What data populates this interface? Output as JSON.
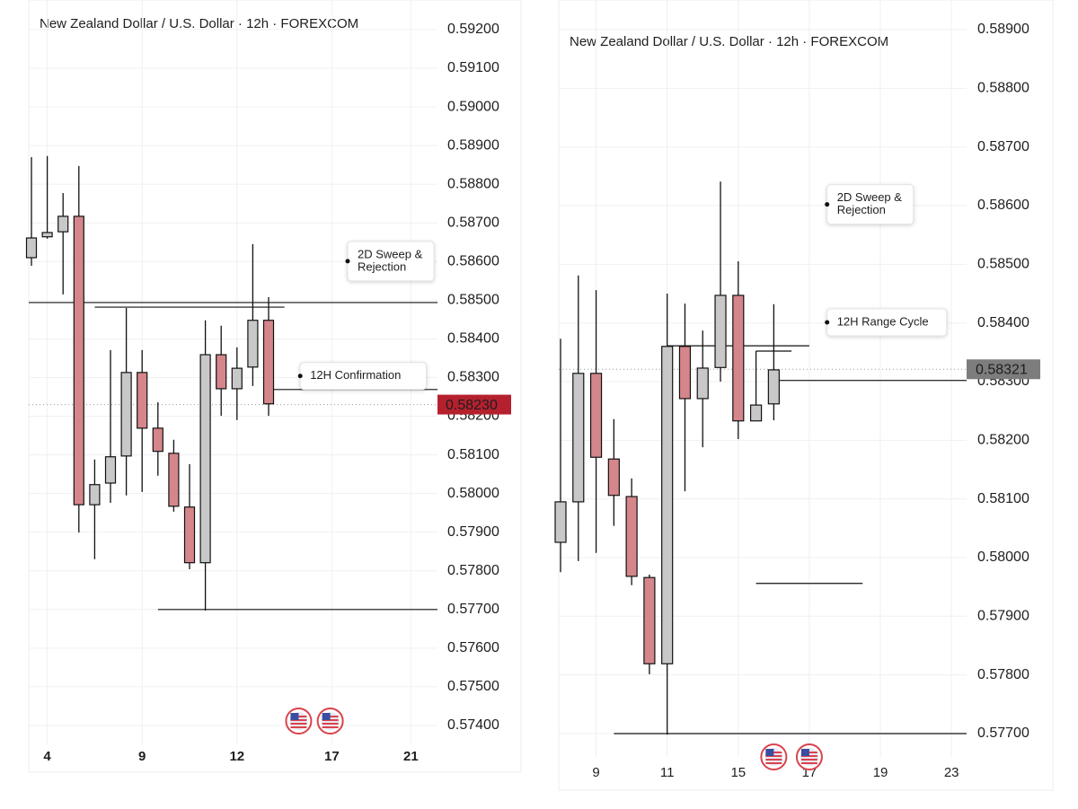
{
  "chart_data": [
    {
      "type": "candlestick",
      "title": "New Zealand Dollar / U.S. Dollar · 12h · FOREXCOM",
      "up_color": "#c8c8c8",
      "down_color": "#d4868b",
      "open": [
        0.5861,
        0.58664,
        0.58677,
        0.58717,
        0.57971,
        0.58027,
        0.58097,
        0.58313,
        0.58169,
        0.58104,
        0.57965,
        0.57821,
        0.58359,
        0.58271,
        0.58327,
        0.58448
      ],
      "high": [
        0.5887,
        0.58873,
        0.58777,
        0.58847,
        0.58088,
        0.58371,
        0.5848,
        0.58371,
        0.58236,
        0.58139,
        0.58076,
        0.58448,
        0.58434,
        0.58378,
        0.58645,
        0.58508
      ],
      "low": [
        0.58589,
        0.58659,
        0.58515,
        0.57899,
        0.5783,
        0.57976,
        0.57995,
        0.58004,
        0.58046,
        0.57953,
        0.57804,
        0.57697,
        0.58201,
        0.5819,
        0.58278,
        0.58201
      ],
      "close": [
        0.58661,
        0.58675,
        0.58717,
        0.57971,
        0.58023,
        0.58095,
        0.58313,
        0.58169,
        0.58109,
        0.57967,
        0.57821,
        0.58359,
        0.58271,
        0.58324,
        0.58448,
        0.58232
      ],
      "ylim": [
        0.5735,
        0.5925
      ],
      "yticks": [
        {
          "value": 0.574,
          "label": "0.57400"
        },
        {
          "value": 0.575,
          "label": "0.57500"
        },
        {
          "value": 0.576,
          "label": "0.57600"
        },
        {
          "value": 0.577,
          "label": "0.57700"
        },
        {
          "value": 0.578,
          "label": "0.57800"
        },
        {
          "value": 0.579,
          "label": "0.57900"
        },
        {
          "value": 0.58,
          "label": "0.58000"
        },
        {
          "value": 0.581,
          "label": "0.58100"
        },
        {
          "value": 0.582,
          "label": "0.58200"
        },
        {
          "value": 0.583,
          "label": "0.58300"
        },
        {
          "value": 0.584,
          "label": "0.58400"
        },
        {
          "value": 0.585,
          "label": "0.58500"
        },
        {
          "value": 0.586,
          "label": "0.58600"
        },
        {
          "value": 0.587,
          "label": "0.58700"
        },
        {
          "value": 0.588,
          "label": "0.58800"
        },
        {
          "value": 0.589,
          "label": "0.58900"
        },
        {
          "value": 0.59,
          "label": "0.59000"
        },
        {
          "value": 0.591,
          "label": "0.59100"
        },
        {
          "value": 0.592,
          "label": "0.59200"
        }
      ],
      "xticks": [
        {
          "value": 1,
          "label": "4"
        },
        {
          "value": 7,
          "label": "9"
        },
        {
          "value": 13,
          "label": "12"
        },
        {
          "value": 19,
          "label": "17"
        },
        {
          "value": 24,
          "label": "21"
        }
      ],
      "grid": true,
      "last_price": {
        "value": 0.5823,
        "label": "0.58230",
        "color": "#b5202e"
      },
      "levels": [
        {
          "price": 0.58494,
          "from": -1,
          "to": 30
        },
        {
          "price": 0.58482,
          "from": 4,
          "to": 16
        },
        {
          "price": 0.58269,
          "from": 15,
          "to": 30
        },
        {
          "price": 0.577,
          "from": 8,
          "to": 30
        }
      ],
      "annotations": [
        {
          "text": [
            "2D Sweep &",
            "Rejection"
          ],
          "price": 0.58601,
          "at": 20
        },
        {
          "text": [
            "12H Confirmation"
          ],
          "price": 0.58304,
          "at": 17
        }
      ],
      "events": [
        16.9,
        18.9
      ]
    },
    {
      "type": "candlestick",
      "title": "New Zealand Dollar / U.S. Dollar · 12h · FOREXCOM",
      "up_color": "#c8c8c8",
      "down_color": "#d4868b",
      "open": [
        0.58026,
        0.58095,
        0.58314,
        0.58168,
        0.58104,
        0.57966,
        0.57819,
        0.5836,
        0.58271,
        0.58324,
        0.58447,
        0.58233,
        0.58262
      ],
      "high": [
        0.58373,
        0.58481,
        0.58456,
        0.58236,
        0.58135,
        0.57971,
        0.5845,
        0.58433,
        0.58387,
        0.58641,
        0.58505,
        0.58352,
        0.58432
      ],
      "low": [
        0.57975,
        0.57994,
        0.58008,
        0.58054,
        0.57953,
        0.57801,
        0.57698,
        0.58113,
        0.58188,
        0.583,
        0.58202,
        0.58233,
        0.58234
      ],
      "close": [
        0.58095,
        0.58314,
        0.58171,
        0.58106,
        0.57968,
        0.57819,
        0.5836,
        0.58271,
        0.58323,
        0.58447,
        0.58233,
        0.5826,
        0.5832
      ],
      "ylim": [
        0.5766,
        0.5893
      ],
      "yticks": [
        {
          "value": 0.577,
          "label": "0.57700"
        },
        {
          "value": 0.578,
          "label": "0.57800"
        },
        {
          "value": 0.579,
          "label": "0.57900"
        },
        {
          "value": 0.58,
          "label": "0.58000"
        },
        {
          "value": 0.581,
          "label": "0.58100"
        },
        {
          "value": 0.582,
          "label": "0.58200"
        },
        {
          "value": 0.583,
          "label": "0.58300"
        },
        {
          "value": 0.584,
          "label": "0.58400"
        },
        {
          "value": 0.585,
          "label": "0.58500"
        },
        {
          "value": 0.586,
          "label": "0.58600"
        },
        {
          "value": 0.587,
          "label": "0.58700"
        },
        {
          "value": 0.588,
          "label": "0.58800"
        },
        {
          "value": 0.589,
          "label": "0.58900"
        }
      ],
      "xticks": [
        {
          "value": 2,
          "label": "9"
        },
        {
          "value": 6,
          "label": "11"
        },
        {
          "value": 10,
          "label": "15"
        },
        {
          "value": 14,
          "label": "17"
        },
        {
          "value": 18,
          "label": "19"
        },
        {
          "value": 22,
          "label": "23"
        }
      ],
      "grid": true,
      "last_price": {
        "value": 0.58321,
        "label": "0.58321",
        "color": "#7d7d7d"
      },
      "levels": [
        {
          "price": 0.58361,
          "from": 6,
          "to": 14
        },
        {
          "price": 0.58352,
          "from": 11,
          "to": 13
        },
        {
          "price": 0.57956,
          "from": 11,
          "to": 17
        },
        {
          "price": 0.58302,
          "from": 12,
          "to": 30
        },
        {
          "price": 0.577,
          "from": 3,
          "to": 30
        }
      ],
      "annotations": [
        {
          "text": [
            "2D Sweep &",
            "Rejection"
          ],
          "price": 0.58602,
          "at": 15
        },
        {
          "text": [
            "12H Range Cycle"
          ],
          "price": 0.58401,
          "at": 15
        }
      ],
      "events": [
        12,
        14
      ]
    }
  ]
}
